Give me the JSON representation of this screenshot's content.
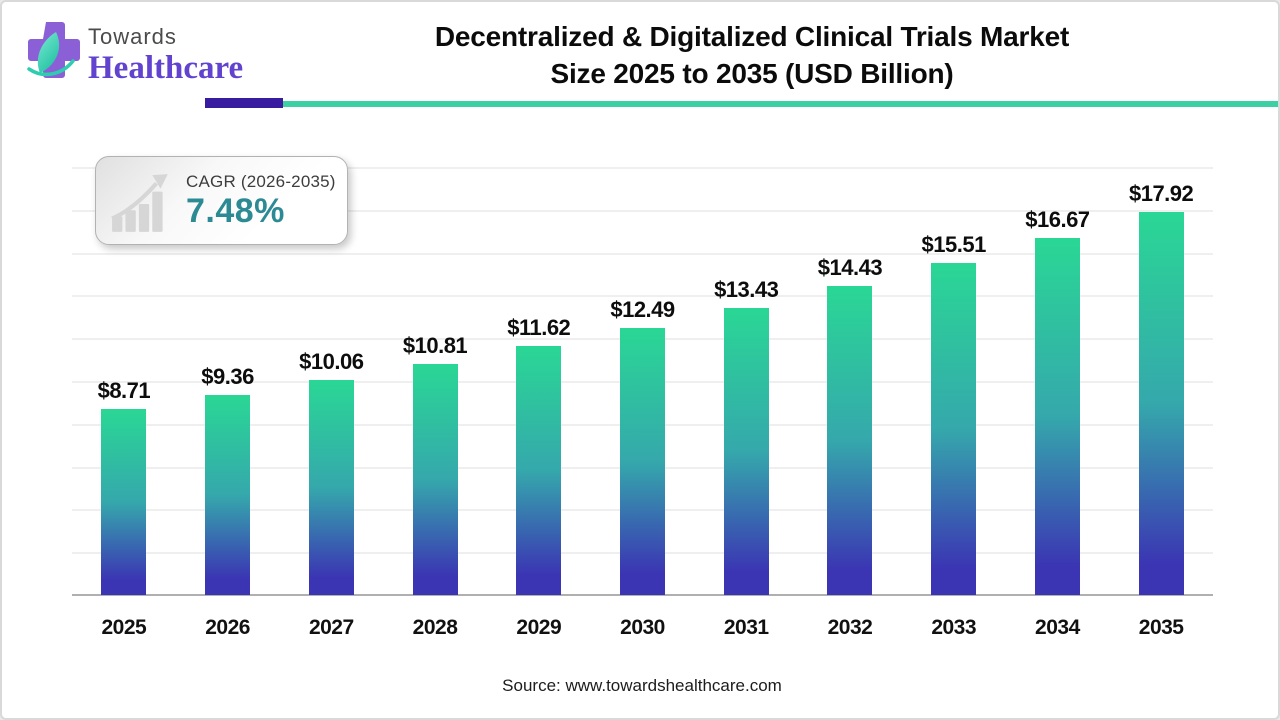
{
  "header": {
    "logo": {
      "line1": "Towards",
      "line2": "Healthcare"
    },
    "title_line1": "Decentralized & Digitalized Clinical Trials Market",
    "title_line2": "Size 2025 to 2035 (USD Billion)"
  },
  "cagr_badge": {
    "label": "CAGR (2026-2035)",
    "value": "7.48%"
  },
  "chart_data": {
    "type": "bar",
    "title": "Decentralized & Digitalized Clinical Trials Market Size 2025 to 2035 (USD Billion)",
    "categories": [
      "2025",
      "2026",
      "2027",
      "2028",
      "2029",
      "2030",
      "2031",
      "2032",
      "2033",
      "2034",
      "2035"
    ],
    "values": [
      8.71,
      9.36,
      10.06,
      10.81,
      11.62,
      12.49,
      13.43,
      14.43,
      15.51,
      16.67,
      17.92
    ],
    "value_prefix": "$",
    "xlabel": "",
    "ylabel": "",
    "ylim": [
      0,
      20
    ],
    "grid": true,
    "gridline_step": 2,
    "legend_position": "none",
    "bar_gradient_top": "#2ad795",
    "bar_gradient_mid": "#35a8ac",
    "bar_gradient_bottom": "#3b35b3"
  },
  "footer": {
    "source": "Source: www.towardshealthcare.com"
  },
  "colors": {
    "divider_purple": "#381b9e",
    "divider_teal": "#3dd0a5",
    "cagr_value_teal": "#2b8a93",
    "logo_purple": "#6243cf",
    "axis_gray": "#b0b0b0"
  }
}
